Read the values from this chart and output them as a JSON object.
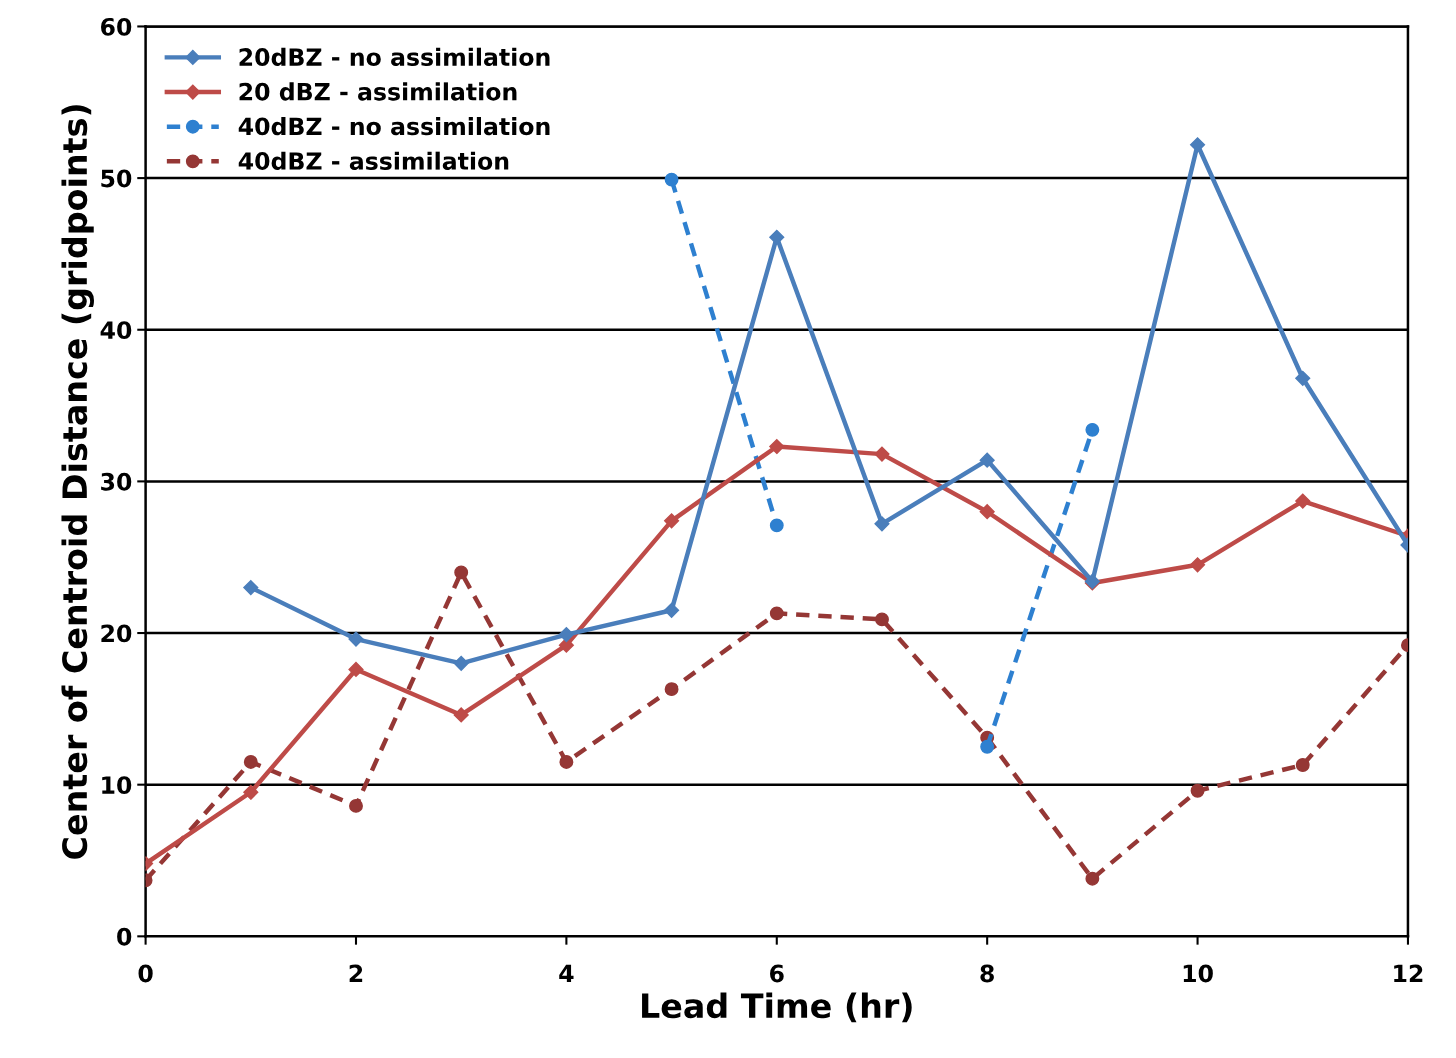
{
  "chart_data": {
    "type": "line",
    "xlabel": "Lead Time (hr)",
    "ylabel": "Center of Centroid Distance (gridpoints)",
    "x": [
      0,
      1,
      2,
      3,
      4,
      5,
      6,
      7,
      8,
      9,
      10,
      11,
      12
    ],
    "xlim": [
      0,
      12
    ],
    "xticks": [
      0,
      2,
      4,
      6,
      8,
      10,
      12
    ],
    "ylim": [
      0,
      60
    ],
    "yticks": [
      0,
      10,
      20,
      30,
      40,
      50,
      60
    ],
    "grid": "y",
    "legend": "top left",
    "series": [
      {
        "name": "20dBZ - no assimilation",
        "color": "#4a7ebb",
        "marker": "diamond",
        "line_style": "solid",
        "values": [
          null,
          23.0,
          19.6,
          18.0,
          19.9,
          21.5,
          46.1,
          27.2,
          31.4,
          23.4,
          52.2,
          36.8,
          25.8
        ]
      },
      {
        "name": "20 dBZ - assimilation",
        "color": "#be4b48",
        "marker": "diamond",
        "line_style": "solid",
        "values": [
          4.8,
          9.5,
          17.6,
          14.6,
          19.2,
          27.4,
          32.3,
          31.8,
          28.0,
          23.3,
          24.5,
          28.7,
          26.4
        ]
      },
      {
        "name": "40dBZ - no assimilation",
        "color": "#2e80d0",
        "marker": "circle",
        "line_style": "dashed",
        "values": [
          null,
          null,
          null,
          null,
          null,
          49.9,
          27.1,
          null,
          12.5,
          33.4,
          null,
          null,
          null
        ]
      },
      {
        "name": "40dBZ - assimilation",
        "color": "#953735",
        "marker": "circle",
        "line_style": "dashed",
        "values": [
          3.7,
          11.5,
          8.6,
          24.0,
          11.5,
          16.3,
          21.3,
          20.9,
          13.1,
          3.8,
          9.6,
          11.3,
          19.2
        ]
      }
    ]
  }
}
